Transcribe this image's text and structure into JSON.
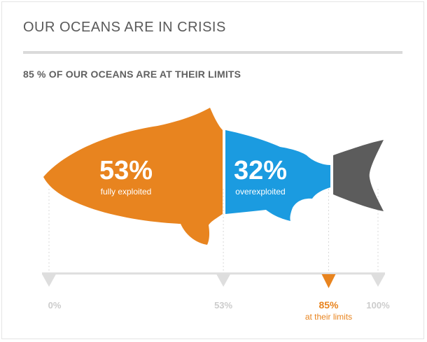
{
  "header": {
    "title": "OUR OCEANS ARE IN CRISIS",
    "subtitle": "85 % OF OUR OCEANS ARE AT THEIR LIMITS"
  },
  "colors": {
    "fully_exploited": "#e8841f",
    "overexploited": "#1b9be0",
    "remaining": "#5c5c5c",
    "axis": "#dedede",
    "axis_label": "#cccccc",
    "marker": "#e8841f"
  },
  "chart_data": {
    "type": "bar",
    "title": "85 % OF OUR OCEANS ARE AT THEIR LIMITS",
    "orientation": "horizontal-stacked",
    "segments": [
      {
        "name": "fully exploited",
        "value": 53,
        "label": "53%",
        "sublabel": "fully exploited"
      },
      {
        "name": "overexploited",
        "value": 32,
        "label": "32%",
        "sublabel": "overexploited"
      },
      {
        "name": "",
        "value": 15,
        "label": "",
        "sublabel": ""
      }
    ],
    "xlim": [
      0,
      100
    ],
    "ticks": [
      {
        "value": 0,
        "label": "0%"
      },
      {
        "value": 53,
        "label": "53%"
      },
      {
        "value": 100,
        "label": "100%"
      }
    ],
    "marker": {
      "value": 85,
      "label": "85%",
      "sublabel": "at their limits"
    },
    "grid": false,
    "legend": "none"
  }
}
